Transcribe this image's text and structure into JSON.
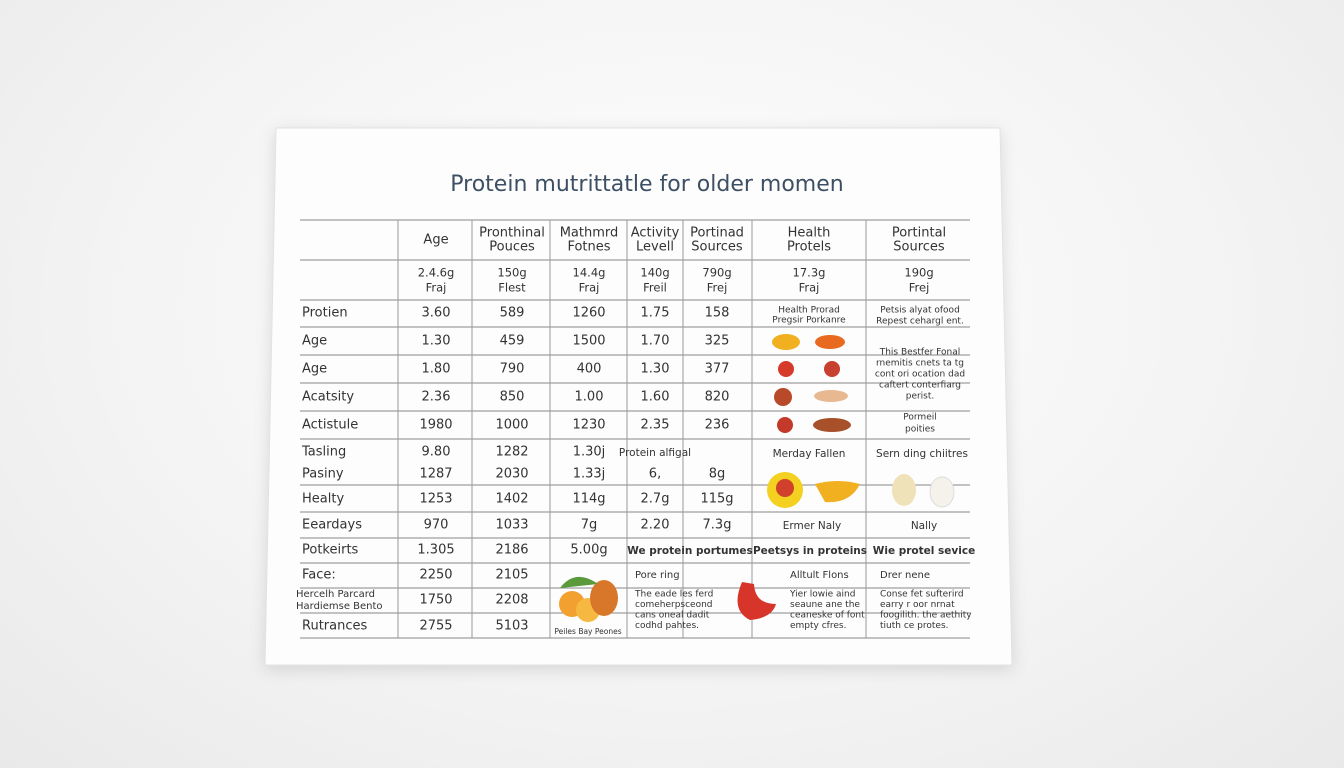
{
  "title": "Protein mutrittatle for older momen",
  "header": [
    [
      "Age"
    ],
    [
      "Pronthinal",
      "Pouces"
    ],
    [
      "Mathmrd",
      "Fotnes"
    ],
    [
      "Activity",
      "Levell"
    ],
    [
      "Portinad",
      "Sources"
    ],
    [
      "Health",
      "Protels"
    ],
    [
      "Portintal",
      "Sources"
    ]
  ],
  "subheader": [
    [
      "2.4.6g",
      "Fraj"
    ],
    [
      "150g",
      "Flest"
    ],
    [
      "14.4g",
      "Fraj"
    ],
    [
      "140g",
      "Freil"
    ],
    [
      "790g",
      "Frej"
    ],
    [
      "17.3g",
      "Fraj"
    ],
    [
      "190g",
      "Frej"
    ]
  ],
  "rows": [
    {
      "label": [
        "Protien"
      ],
      "cells": [
        "3.60",
        "589",
        "1260",
        "1.75",
        "158"
      ]
    },
    {
      "label": [
        "Age"
      ],
      "cells": [
        "1.30",
        "459",
        "1500",
        "1.70",
        "325"
      ]
    },
    {
      "label": [
        "Age"
      ],
      "cells": [
        "1.80",
        "790",
        "400",
        "1.30",
        "377"
      ]
    },
    {
      "label": [
        "Acatsity"
      ],
      "cells": [
        "2.36",
        "850",
        "1.00",
        "1.60",
        "820"
      ]
    },
    {
      "label": [
        "Actistule"
      ],
      "cells": [
        "1980",
        "1000",
        "1230",
        "2.35",
        "236"
      ]
    },
    {
      "label": [
        "Tasling"
      ],
      "cells": [
        "9.80",
        "1282",
        "1.30j"
      ]
    },
    {
      "label": [
        "Pasiny"
      ],
      "cells": [
        "1287",
        "2030",
        "1.33j",
        "6,",
        "8g"
      ]
    },
    {
      "label": [
        "Healty"
      ],
      "cells": [
        "1253",
        "1402",
        "114g",
        "2.7g",
        "115g"
      ]
    },
    {
      "label": [
        "Eeardays"
      ],
      "cells": [
        "970",
        "1033",
        "7g",
        "2.20",
        "7.3g"
      ]
    },
    {
      "label": [
        "Potkeirts"
      ],
      "cells": [
        "1.305",
        "2186",
        "5.00g"
      ]
    },
    {
      "label": [
        "Face:"
      ],
      "cells": [
        "2250",
        "2105"
      ]
    },
    {
      "label": [
        "Hercelh Parcard",
        "Hardiemse Bento"
      ],
      "cells": [
        "1750",
        "2208"
      ]
    },
    {
      "label": [
        "Rutrances"
      ],
      "cells": [
        "2755",
        "5103"
      ]
    }
  ],
  "notes": [
    [
      "Protein alfigal"
    ],
    [
      "We protein portumes"
    ],
    [
      "Health Prorad",
      "Pregsir Porkanre"
    ],
    [
      "Petsis alyat ofood",
      "Repest cehargl ent."
    ],
    [
      "This Bestfer Fonal",
      "rnemitis cnets ta tg",
      "cont ori ocation dad",
      "caftert conterfiarg",
      "perist."
    ],
    [
      "Pormeil",
      "poities"
    ],
    [
      "Merday Fallen"
    ],
    [
      "Sern ding chiitres"
    ],
    [
      "Ermer Naly"
    ],
    [
      "Nally"
    ],
    [
      "Peetsys in proteins"
    ],
    [
      "Wie protel sevice"
    ],
    [
      "Peiles Bay Peones"
    ],
    [
      "Pore ring"
    ],
    [
      "The eade les ferd",
      "comeherpsceond",
      "cans oneal dadit",
      "codhd pahtes."
    ],
    [
      "Alltult Flons"
    ],
    [
      "Yier lowie aind",
      "seaune ane the",
      "ceaneske of font",
      "empty cfres."
    ],
    [
      "Drer nene"
    ],
    [
      "Conse fet sufterird",
      "earry r oor nrnat",
      "foogilith. the aethity",
      "tiuth ce protes."
    ]
  ]
}
